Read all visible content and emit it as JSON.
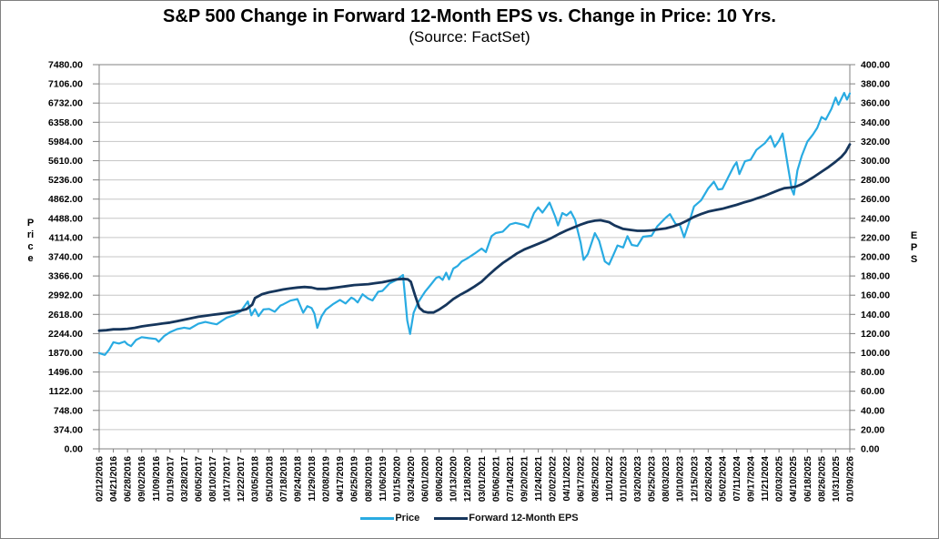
{
  "chart_data": {
    "type": "line",
    "title": "S&P 500 Change in Forward 12-Month EPS vs. Change in Price: 10 Yrs.",
    "subtitle": "(Source: FactSet)",
    "grid": "horizontal",
    "legend_position": "bottom",
    "left_axis": {
      "label": "Price",
      "min": 0,
      "max": 7480,
      "step": 374
    },
    "right_axis": {
      "label": "EPS",
      "min": 0,
      "max": 400,
      "step": 20
    },
    "x_tick_labels": [
      "02/12/2016",
      "04/21/2016",
      "06/28/2016",
      "09/02/2016",
      "11/09/2016",
      "01/19/2017",
      "03/28/2017",
      "06/05/2017",
      "08/10/2017",
      "10/17/2017",
      "12/22/2017",
      "03/05/2018",
      "05/10/2018",
      "07/18/2018",
      "09/24/2018",
      "11/29/2018",
      "02/08/2019",
      "04/17/2019",
      "06/25/2019",
      "08/30/2019",
      "11/06/2019",
      "01/15/2020",
      "03/24/2020",
      "06/01/2020",
      "08/06/2020",
      "10/13/2020",
      "12/18/2020",
      "03/01/2021",
      "05/06/2021",
      "07/14/2021",
      "09/20/2021",
      "11/24/2021",
      "02/02/2022",
      "04/11/2022",
      "06/17/2022",
      "08/25/2022",
      "11/01/2022",
      "01/10/2023",
      "03/20/2023",
      "05/25/2023",
      "08/03/2023",
      "10/10/2023",
      "12/15/2023",
      "02/26/2024",
      "05/02/2024",
      "07/11/2024",
      "09/17/2024",
      "11/21/2024",
      "02/03/2025",
      "04/10/2025",
      "06/18/2025",
      "08/26/2025",
      "10/31/2025",
      "01/09/2026"
    ],
    "series": [
      {
        "name": "Price",
        "axis": "left",
        "color": "#29ABE2",
        "stroke_width": 2.2,
        "points": [
          [
            0,
            1865
          ],
          [
            0.4,
            1830
          ],
          [
            0.7,
            1930
          ],
          [
            1,
            2075
          ],
          [
            1.4,
            2050
          ],
          [
            1.8,
            2090
          ],
          [
            2,
            2035
          ],
          [
            2.25,
            2000
          ],
          [
            2.6,
            2120
          ],
          [
            3,
            2175
          ],
          [
            3.5,
            2155
          ],
          [
            4,
            2140
          ],
          [
            4.2,
            2085
          ],
          [
            4.6,
            2200
          ],
          [
            5,
            2270
          ],
          [
            5.5,
            2330
          ],
          [
            6,
            2360
          ],
          [
            6.4,
            2340
          ],
          [
            7,
            2435
          ],
          [
            7.5,
            2470
          ],
          [
            8,
            2440
          ],
          [
            8.3,
            2425
          ],
          [
            8.7,
            2500
          ],
          [
            9,
            2555
          ],
          [
            9.5,
            2600
          ],
          [
            10,
            2680
          ],
          [
            10.5,
            2872
          ],
          [
            10.75,
            2600
          ],
          [
            11,
            2720
          ],
          [
            11.25,
            2585
          ],
          [
            11.6,
            2715
          ],
          [
            12,
            2725
          ],
          [
            12.4,
            2670
          ],
          [
            12.8,
            2790
          ],
          [
            13,
            2815
          ],
          [
            13.5,
            2885
          ],
          [
            14,
            2915
          ],
          [
            14.4,
            2650
          ],
          [
            14.7,
            2780
          ],
          [
            15,
            2740
          ],
          [
            15.2,
            2630
          ],
          [
            15.4,
            2355
          ],
          [
            15.7,
            2580
          ],
          [
            16,
            2710
          ],
          [
            16.5,
            2815
          ],
          [
            17,
            2900
          ],
          [
            17.4,
            2830
          ],
          [
            17.8,
            2945
          ],
          [
            18,
            2915
          ],
          [
            18.25,
            2850
          ],
          [
            18.6,
            3010
          ],
          [
            19,
            2925
          ],
          [
            19.3,
            2890
          ],
          [
            19.7,
            3060
          ],
          [
            20,
            3075
          ],
          [
            20.5,
            3220
          ],
          [
            21,
            3290
          ],
          [
            21.45,
            3385
          ],
          [
            21.75,
            2500
          ],
          [
            21.95,
            2237
          ],
          [
            22.2,
            2650
          ],
          [
            22.5,
            2840
          ],
          [
            22.75,
            2950
          ],
          [
            23,
            3055
          ],
          [
            23.4,
            3190
          ],
          [
            23.8,
            3330
          ],
          [
            24,
            3350
          ],
          [
            24.25,
            3290
          ],
          [
            24.5,
            3430
          ],
          [
            24.7,
            3300
          ],
          [
            25,
            3510
          ],
          [
            25.3,
            3560
          ],
          [
            25.6,
            3650
          ],
          [
            26,
            3710
          ],
          [
            26.5,
            3800
          ],
          [
            27,
            3900
          ],
          [
            27.3,
            3830
          ],
          [
            27.7,
            4140
          ],
          [
            28,
            4200
          ],
          [
            28.5,
            4230
          ],
          [
            29,
            4370
          ],
          [
            29.4,
            4400
          ],
          [
            30,
            4360
          ],
          [
            30.3,
            4310
          ],
          [
            30.7,
            4590
          ],
          [
            31,
            4700
          ],
          [
            31.3,
            4600
          ],
          [
            31.8,
            4795
          ],
          [
            32.2,
            4520
          ],
          [
            32.4,
            4350
          ],
          [
            32.7,
            4590
          ],
          [
            33,
            4545
          ],
          [
            33.3,
            4620
          ],
          [
            33.6,
            4460
          ],
          [
            34,
            4010
          ],
          [
            34.2,
            3680
          ],
          [
            34.5,
            3790
          ],
          [
            35,
            4200
          ],
          [
            35.3,
            4050
          ],
          [
            35.7,
            3650
          ],
          [
            36,
            3590
          ],
          [
            36.3,
            3770
          ],
          [
            36.6,
            3960
          ],
          [
            37,
            3920
          ],
          [
            37.3,
            4140
          ],
          [
            37.6,
            3970
          ],
          [
            38,
            3950
          ],
          [
            38.4,
            4130
          ],
          [
            39,
            4150
          ],
          [
            39.4,
            4330
          ],
          [
            40,
            4500
          ],
          [
            40.3,
            4570
          ],
          [
            40.7,
            4380
          ],
          [
            41,
            4360
          ],
          [
            41.3,
            4120
          ],
          [
            41.6,
            4360
          ],
          [
            42,
            4720
          ],
          [
            42.5,
            4840
          ],
          [
            43,
            5070
          ],
          [
            43.4,
            5200
          ],
          [
            43.7,
            5050
          ],
          [
            44,
            5060
          ],
          [
            44.4,
            5280
          ],
          [
            44.8,
            5500
          ],
          [
            45,
            5580
          ],
          [
            45.2,
            5350
          ],
          [
            45.6,
            5600
          ],
          [
            46,
            5630
          ],
          [
            46.4,
            5820
          ],
          [
            47,
            5950
          ],
          [
            47.4,
            6090
          ],
          [
            47.7,
            5880
          ],
          [
            48,
            6000
          ],
          [
            48.25,
            6140
          ],
          [
            48.6,
            5550
          ],
          [
            48.9,
            5050
          ],
          [
            49.05,
            4950
          ],
          [
            49.3,
            5420
          ],
          [
            49.6,
            5700
          ],
          [
            50,
            5980
          ],
          [
            50.4,
            6120
          ],
          [
            50.7,
            6250
          ],
          [
            51,
            6460
          ],
          [
            51.3,
            6410
          ],
          [
            51.7,
            6620
          ],
          [
            52,
            6840
          ],
          [
            52.2,
            6700
          ],
          [
            52.6,
            6930
          ],
          [
            52.8,
            6800
          ],
          [
            53,
            6920
          ]
        ]
      },
      {
        "name": "Forward 12-Month EPS",
        "axis": "right",
        "color": "#16365C",
        "stroke_width": 2.8,
        "points": [
          [
            0,
            123
          ],
          [
            0.5,
            123.5
          ],
          [
            1,
            124.5
          ],
          [
            1.5,
            124.5
          ],
          [
            2,
            125
          ],
          [
            2.5,
            126
          ],
          [
            3,
            127.5
          ],
          [
            3.5,
            128.5
          ],
          [
            4,
            129.5
          ],
          [
            4.5,
            130.5
          ],
          [
            5,
            131.5
          ],
          [
            5.5,
            133
          ],
          [
            6,
            134.5
          ],
          [
            6.5,
            136
          ],
          [
            7,
            137.5
          ],
          [
            7.5,
            138.5
          ],
          [
            8,
            139.5
          ],
          [
            8.5,
            140.5
          ],
          [
            9,
            141.5
          ],
          [
            9.5,
            142.5
          ],
          [
            10,
            144
          ],
          [
            10.4,
            145.5
          ],
          [
            10.8,
            150
          ],
          [
            11,
            157
          ],
          [
            11.5,
            161
          ],
          [
            12,
            163
          ],
          [
            12.5,
            164.5
          ],
          [
            13,
            166
          ],
          [
            13.5,
            167
          ],
          [
            14,
            168
          ],
          [
            14.5,
            168.5
          ],
          [
            15,
            168
          ],
          [
            15.4,
            166.5
          ],
          [
            16,
            166.5
          ],
          [
            16.5,
            167.5
          ],
          [
            17,
            168.5
          ],
          [
            17.5,
            169.5
          ],
          [
            18,
            170.5
          ],
          [
            18.5,
            171
          ],
          [
            19,
            171.5
          ],
          [
            19.5,
            172.5
          ],
          [
            20,
            173.5
          ],
          [
            20.5,
            175
          ],
          [
            21,
            176.5
          ],
          [
            21.5,
            177
          ],
          [
            21.8,
            176.5
          ],
          [
            22,
            174
          ],
          [
            22.3,
            160
          ],
          [
            22.6,
            147
          ],
          [
            22.9,
            143
          ],
          [
            23.2,
            142
          ],
          [
            23.6,
            142
          ],
          [
            24,
            145
          ],
          [
            24.5,
            150
          ],
          [
            25,
            156
          ],
          [
            25.5,
            160.5
          ],
          [
            26,
            164.5
          ],
          [
            26.5,
            169
          ],
          [
            27,
            174
          ],
          [
            27.5,
            181
          ],
          [
            28,
            187.5
          ],
          [
            28.5,
            193.5
          ],
          [
            29,
            198.5
          ],
          [
            29.5,
            203.5
          ],
          [
            30,
            207.5
          ],
          [
            30.5,
            210.5
          ],
          [
            31,
            213.5
          ],
          [
            31.5,
            216.5
          ],
          [
            32,
            220
          ],
          [
            32.5,
            224
          ],
          [
            33,
            227.5
          ],
          [
            33.5,
            230.5
          ],
          [
            34,
            233.5
          ],
          [
            34.5,
            236
          ],
          [
            35,
            237.5
          ],
          [
            35.4,
            238
          ],
          [
            36,
            236
          ],
          [
            36.4,
            232.5
          ],
          [
            37,
            229
          ],
          [
            37.5,
            228
          ],
          [
            38,
            227
          ],
          [
            38.5,
            227
          ],
          [
            39,
            227.5
          ],
          [
            39.5,
            228.5
          ],
          [
            40,
            229.5
          ],
          [
            40.5,
            231.5
          ],
          [
            41,
            234
          ],
          [
            41.5,
            237.5
          ],
          [
            42,
            241.5
          ],
          [
            42.5,
            244.5
          ],
          [
            43,
            247
          ],
          [
            43.5,
            248.5
          ],
          [
            44,
            250
          ],
          [
            44.5,
            252
          ],
          [
            45,
            254
          ],
          [
            45.5,
            256.5
          ],
          [
            46,
            258.5
          ],
          [
            46.5,
            261
          ],
          [
            47,
            263.5
          ],
          [
            47.5,
            266.5
          ],
          [
            48,
            269.5
          ],
          [
            48.4,
            271.5
          ],
          [
            48.8,
            272
          ],
          [
            49.2,
            273
          ],
          [
            49.6,
            275.5
          ],
          [
            50,
            279
          ],
          [
            50.5,
            283.5
          ],
          [
            51,
            288.5
          ],
          [
            51.5,
            293.5
          ],
          [
            52,
            299
          ],
          [
            52.4,
            304
          ],
          [
            52.7,
            309
          ],
          [
            53,
            317
          ]
        ]
      }
    ],
    "colors": {
      "gridline": "#C6C6C6",
      "plot_border": "#808080",
      "tick": "#808080",
      "text": "#000000"
    }
  }
}
